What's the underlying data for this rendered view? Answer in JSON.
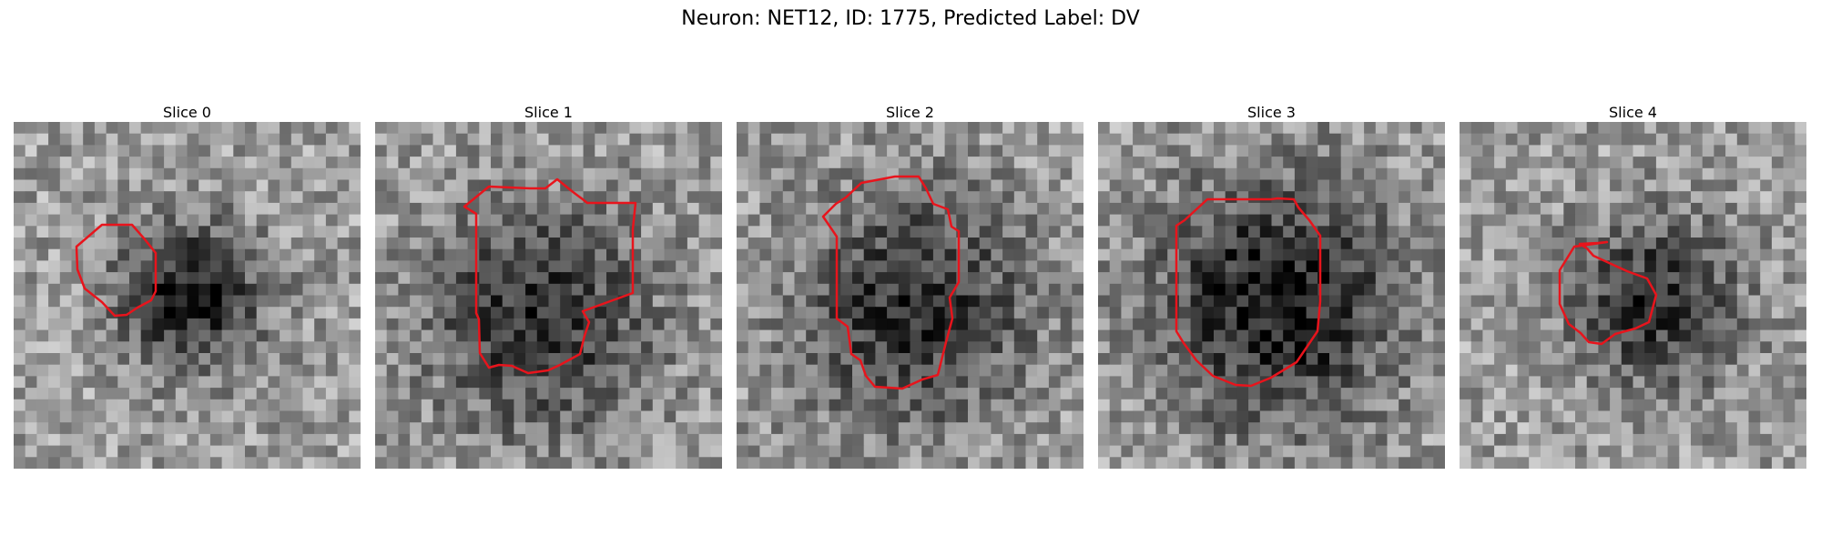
{
  "figure": {
    "title": "Neuron: NET12, ID: 1775, Predicted Label: DV",
    "grid_size": 30,
    "contour_color": "#e8141c",
    "colormap": "gray"
  },
  "slices": [
    {
      "title": "Slice 0",
      "seed": 11,
      "blob": {
        "cx": 15.3,
        "cy": 15.1,
        "r": 5.8,
        "strength": 0.55
      }
    },
    {
      "title": "Slice 1",
      "seed": 23,
      "blob": {
        "cx": 14.2,
        "cy": 17.0,
        "r": 9.0,
        "strength": 0.45
      }
    },
    {
      "title": "Slice 2",
      "seed": 37,
      "blob": {
        "cx": 15.4,
        "cy": 16.1,
        "r": 9.5,
        "strength": 0.45
      }
    },
    {
      "title": "Slice 3",
      "seed": 41,
      "blob": {
        "cx": 15.5,
        "cy": 15.6,
        "r": 9.8,
        "strength": 0.55
      }
    },
    {
      "title": "Slice 4",
      "seed": 53,
      "blob": {
        "cx": 17.0,
        "cy": 15.5,
        "r": 6.8,
        "strength": 0.45
      }
    }
  ]
}
